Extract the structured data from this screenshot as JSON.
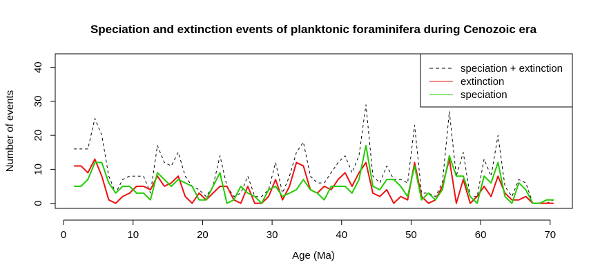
{
  "chart_data": {
    "type": "line",
    "title": "Speciation and extinction events of planktonic foraminifera during Cenozoic era",
    "xlabel": "Age (Ma)",
    "ylabel": "Number of events",
    "xlim": [
      -1.2,
      73.2
    ],
    "ylim": [
      -1.5,
      44
    ],
    "xticks": [
      0,
      10,
      20,
      30,
      40,
      50,
      60,
      70
    ],
    "yticks": [
      0,
      10,
      20,
      30,
      40
    ],
    "grid": false,
    "legend_position": "top-right",
    "x": [
      1.5,
      2.5,
      3.5,
      4.5,
      5.5,
      6.5,
      7.5,
      8.5,
      9.5,
      10.5,
      11.5,
      12.5,
      13.5,
      14.5,
      15.5,
      16.5,
      17.5,
      18.5,
      19.5,
      20.5,
      21.5,
      22.5,
      23.5,
      24.5,
      25.5,
      26.5,
      27.5,
      28.5,
      29.5,
      30.5,
      31.5,
      32.5,
      33.5,
      34.5,
      35.5,
      36.5,
      37.5,
      38.5,
      39.5,
      40.5,
      41.5,
      42.5,
      43.5,
      44.5,
      45.5,
      46.5,
      47.5,
      48.5,
      49.5,
      50.5,
      51.5,
      52.5,
      53.5,
      54.5,
      55.5,
      56.5,
      57.5,
      58.5,
      59.5,
      60.5,
      61.5,
      62.5,
      63.5,
      64.5,
      65.5,
      66.5,
      67.5,
      68.5,
      69.5,
      70.5
    ],
    "series": [
      {
        "name": "speciation + extinction",
        "color": "#000000",
        "style": "dashed",
        "values": [
          16,
          16,
          16,
          25,
          20,
          8,
          3,
          7,
          8,
          8,
          8,
          3,
          17,
          12,
          11,
          15,
          8,
          5,
          4,
          2,
          5,
          14,
          5,
          2,
          3,
          8,
          2,
          2,
          4,
          12,
          3,
          8,
          15,
          18,
          8,
          6,
          6,
          9,
          12,
          14,
          9,
          14,
          29,
          8,
          6,
          11,
          7,
          7,
          6,
          23,
          3,
          3,
          2,
          6,
          27,
          8,
          15,
          2,
          2,
          13,
          8,
          20,
          5,
          2,
          7,
          6,
          0,
          0,
          0,
          1
        ]
      },
      {
        "name": "extinction",
        "color": "#ee1111",
        "style": "solid",
        "values": [
          11,
          11,
          9,
          13,
          8,
          1,
          0,
          2,
          3,
          5,
          5,
          4,
          8,
          5,
          6,
          8,
          2,
          0,
          3,
          1,
          3,
          5,
          5,
          1,
          0,
          5,
          0,
          0,
          2,
          7,
          1,
          5,
          12,
          11,
          4,
          3,
          5,
          4,
          7,
          9,
          5,
          9,
          12,
          3,
          2,
          4,
          0,
          2,
          1,
          12,
          2,
          0,
          1,
          5,
          13,
          0,
          7,
          0,
          2,
          5,
          2,
          8,
          3,
          1,
          1,
          2,
          0,
          0,
          0,
          0
        ]
      },
      {
        "name": "speciation",
        "color": "#22cc00",
        "style": "solid",
        "values": [
          5,
          5,
          7,
          12,
          12,
          6,
          3,
          5,
          5,
          3,
          3,
          1,
          9,
          7,
          5,
          7,
          6,
          5,
          1,
          1,
          5,
          9,
          0,
          1,
          5,
          3,
          2,
          0,
          4,
          5,
          2,
          3,
          4,
          7,
          4,
          3,
          1,
          5,
          5,
          5,
          3,
          7,
          17,
          5,
          4,
          7,
          7,
          5,
          2,
          11,
          1,
          3,
          1,
          4,
          14,
          8,
          8,
          2,
          0,
          8,
          6,
          12,
          2,
          0,
          6,
          4,
          0,
          0,
          1,
          1
        ]
      }
    ]
  }
}
